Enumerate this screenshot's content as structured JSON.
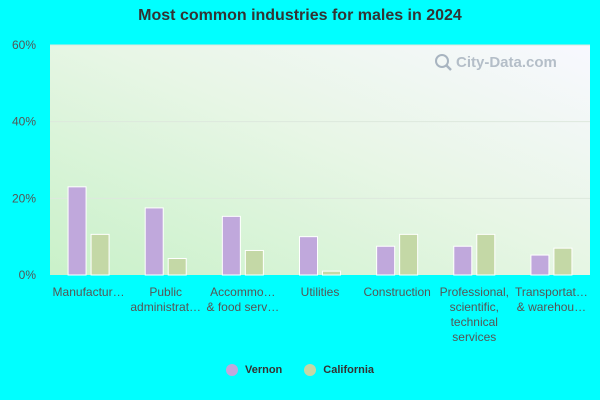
{
  "chart_data": {
    "type": "bar",
    "title": "Most common industries for males in 2024",
    "categories": [
      "Manufactur…",
      "Public administrat…",
      "Accommo… & food serv…",
      "Utilities",
      "Construction",
      "Professional, scientific, technical services",
      "Transportat… & warehou…"
    ],
    "category_lines": [
      [
        "Manufactur…"
      ],
      [
        "Public",
        "administrat…"
      ],
      [
        "Accommo…",
        "& food serv…"
      ],
      [
        "Utilities"
      ],
      [
        "Construction"
      ],
      [
        "Professional,",
        "scientific,",
        "technical",
        "services"
      ],
      [
        "Transportat…",
        "& warehou…"
      ]
    ],
    "series": [
      {
        "name": "Vernon",
        "color": "#c0a8dc",
        "values": [
          23,
          17.5,
          15.3,
          10,
          7.5,
          7.5,
          5.2
        ]
      },
      {
        "name": "California",
        "color": "#c4d8a6",
        "values": [
          10.6,
          4.3,
          6.4,
          1,
          10.6,
          10.6,
          7
        ]
      }
    ],
    "ylim": [
      0,
      60
    ],
    "yticks": [
      0,
      20,
      40,
      60
    ],
    "ytick_labels": [
      "0%",
      "20%",
      "40%",
      "60%"
    ],
    "grid": true,
    "legend_position": "bottom"
  },
  "watermark_text": "City-Data.com"
}
